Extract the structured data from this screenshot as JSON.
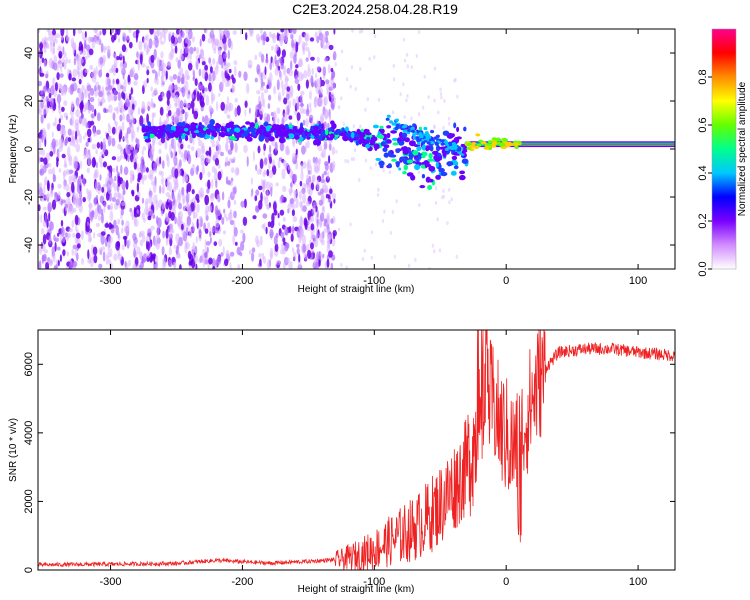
{
  "title": "C2E3.2024.258.04.28.R19",
  "chart_data": [
    {
      "type": "heatmap",
      "xlabel": "Height of straight line (km)",
      "ylabel": "Frequency (Hz)",
      "xlim": [
        -355,
        128
      ],
      "ylim": [
        -50,
        50
      ],
      "xticks": [
        -300,
        -200,
        -100,
        0,
        100
      ],
      "yticks": [
        -40,
        -20,
        0,
        20,
        40
      ],
      "colorbar": {
        "label": "Normalized spectral amplitude",
        "range": [
          0,
          1
        ],
        "ticks": [
          "0.0",
          "0.2",
          "0.4",
          "0.6",
          "0.8"
        ],
        "colors": [
          "#ffffff",
          "#d28cff",
          "#7a00ff",
          "#0000ff",
          "#00c8ff",
          "#00ff8c",
          "#64ff00",
          "#ffff00",
          "#ff8c00",
          "#ff0000",
          "#ff0090"
        ]
      },
      "grid": false,
      "signal_trace": {
        "description_points": [
          [
            -270,
            7
          ],
          [
            -240,
            8
          ],
          [
            -200,
            7
          ],
          [
            -150,
            7
          ],
          [
            -120,
            6
          ],
          [
            -100,
            3
          ],
          [
            -80,
            0
          ],
          [
            -60,
            -3
          ],
          [
            -45,
            -4
          ],
          [
            -30,
            0
          ],
          [
            -10,
            2
          ],
          [
            0,
            2
          ],
          [
            50,
            2
          ],
          [
            100,
            2
          ],
          [
            128,
            2
          ]
        ]
      }
    },
    {
      "type": "line",
      "xlabel": "Height of straight line (km)",
      "ylabel": "SNR (10 * v/v)",
      "xlim": [
        -355,
        128
      ],
      "ylim": [
        0,
        7000
      ],
      "xticks": [
        -300,
        -200,
        -100,
        0,
        100
      ],
      "yticks": [
        0,
        2000,
        4000,
        6000
      ],
      "color": "#ee2222",
      "grid": false,
      "profile": {
        "x": [
          -355,
          -300,
          -250,
          -220,
          -180,
          -150,
          -125,
          -110,
          -100,
          -90,
          -80,
          -70,
          -60,
          -50,
          -40,
          -30,
          -25,
          -20,
          -15,
          -10,
          -5,
          0,
          5,
          10,
          15,
          20,
          25,
          30,
          40,
          60,
          80,
          100,
          128
        ],
        "y": [
          150,
          170,
          190,
          280,
          200,
          250,
          310,
          450,
          600,
          800,
          1000,
          1200,
          1500,
          1900,
          2400,
          3000,
          3600,
          4300,
          5000,
          4900,
          4200,
          3900,
          3500,
          3700,
          4400,
          5000,
          5500,
          5900,
          6350,
          6450,
          6450,
          6350,
          6250
        ]
      }
    }
  ]
}
